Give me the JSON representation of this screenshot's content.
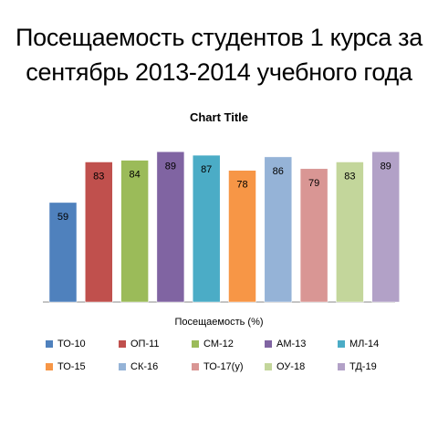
{
  "slide": {
    "title_line1": "Посещаемость студентов 1 курса за",
    "title_line2": "сентябрь 2013-2014 учебного года"
  },
  "chart_data": {
    "type": "bar",
    "title": "Chart Title",
    "xlabel": "Посещаемость (%)",
    "ylabel": "",
    "ylim": [
      0,
      100
    ],
    "grid": false,
    "legend_position": "bottom",
    "categories": [
      "Посещаемость (%)"
    ],
    "series": [
      {
        "name": "ТО-10",
        "value": 59,
        "color": "#4F81BD"
      },
      {
        "name": "ОП-11",
        "value": 83,
        "color": "#C0504D"
      },
      {
        "name": "СМ-12",
        "value": 84,
        "color": "#9BBB59"
      },
      {
        "name": "АМ-13",
        "value": 89,
        "color": "#8064A2"
      },
      {
        "name": "МЛ-14",
        "value": 87,
        "color": "#4BACC6"
      },
      {
        "name": "ТО-15",
        "value": 78,
        "color": "#F79646"
      },
      {
        "name": "СК-16",
        "value": 86,
        "color": "#95B3D7"
      },
      {
        "name": "ТО-17(у)",
        "value": 79,
        "color": "#D99694"
      },
      {
        "name": "ОУ-18",
        "value": 83,
        "color": "#C3D69B"
      },
      {
        "name": "ТД-19",
        "value": 89,
        "color": "#B2A1C7"
      }
    ]
  }
}
